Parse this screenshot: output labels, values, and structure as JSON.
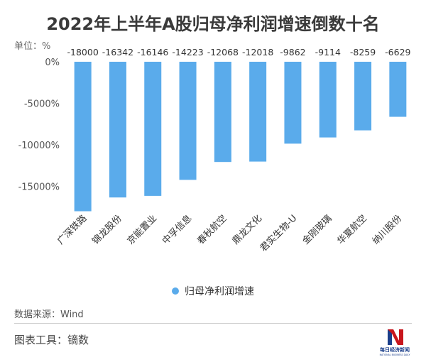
{
  "header": {
    "title": "2022年上半年A股归母净利润增速倒数十名",
    "unit": "单位：%"
  },
  "chart_data": {
    "type": "bar",
    "title": "2022年上半年A股归母净利润增速倒数十名",
    "categories": [
      "广深铁路",
      "锦龙股份",
      "京能置业",
      "中孚信息",
      "春秋航空",
      "鼎龙文化",
      "君实生物-U",
      "金刚玻璃",
      "华夏航空",
      "纳川股份"
    ],
    "series": [
      {
        "name": "归母净利润增速",
        "values": [
          -18000,
          -16342,
          -16146,
          -14223,
          -12068,
          -12018,
          -9862,
          -9114,
          -8259,
          -6629
        ]
      }
    ],
    "data_labels": [
      "-18000",
      "-16342",
      "-16146",
      "-14223",
      "-12068",
      "-12018",
      "-9862",
      "-9114",
      "-8259",
      "-6629"
    ],
    "yticks": [
      0,
      -5000,
      -10000,
      -15000
    ],
    "ytick_labels": [
      "0%",
      "-5000%",
      "-10000%",
      "-15000%"
    ],
    "ylim": [
      -20000,
      0
    ],
    "xlabel": "",
    "ylabel": "",
    "grid": false,
    "legend": "bottom",
    "bar_color": "#5aabeb"
  },
  "legend": {
    "label": "归母净利润增速"
  },
  "footer": {
    "source": "数据来源：Wind",
    "tool": "图表工具：镝数",
    "logo_text": "每日经济新闻",
    "logo_subtext": "NATIONAL BUSINESS DAILY"
  }
}
